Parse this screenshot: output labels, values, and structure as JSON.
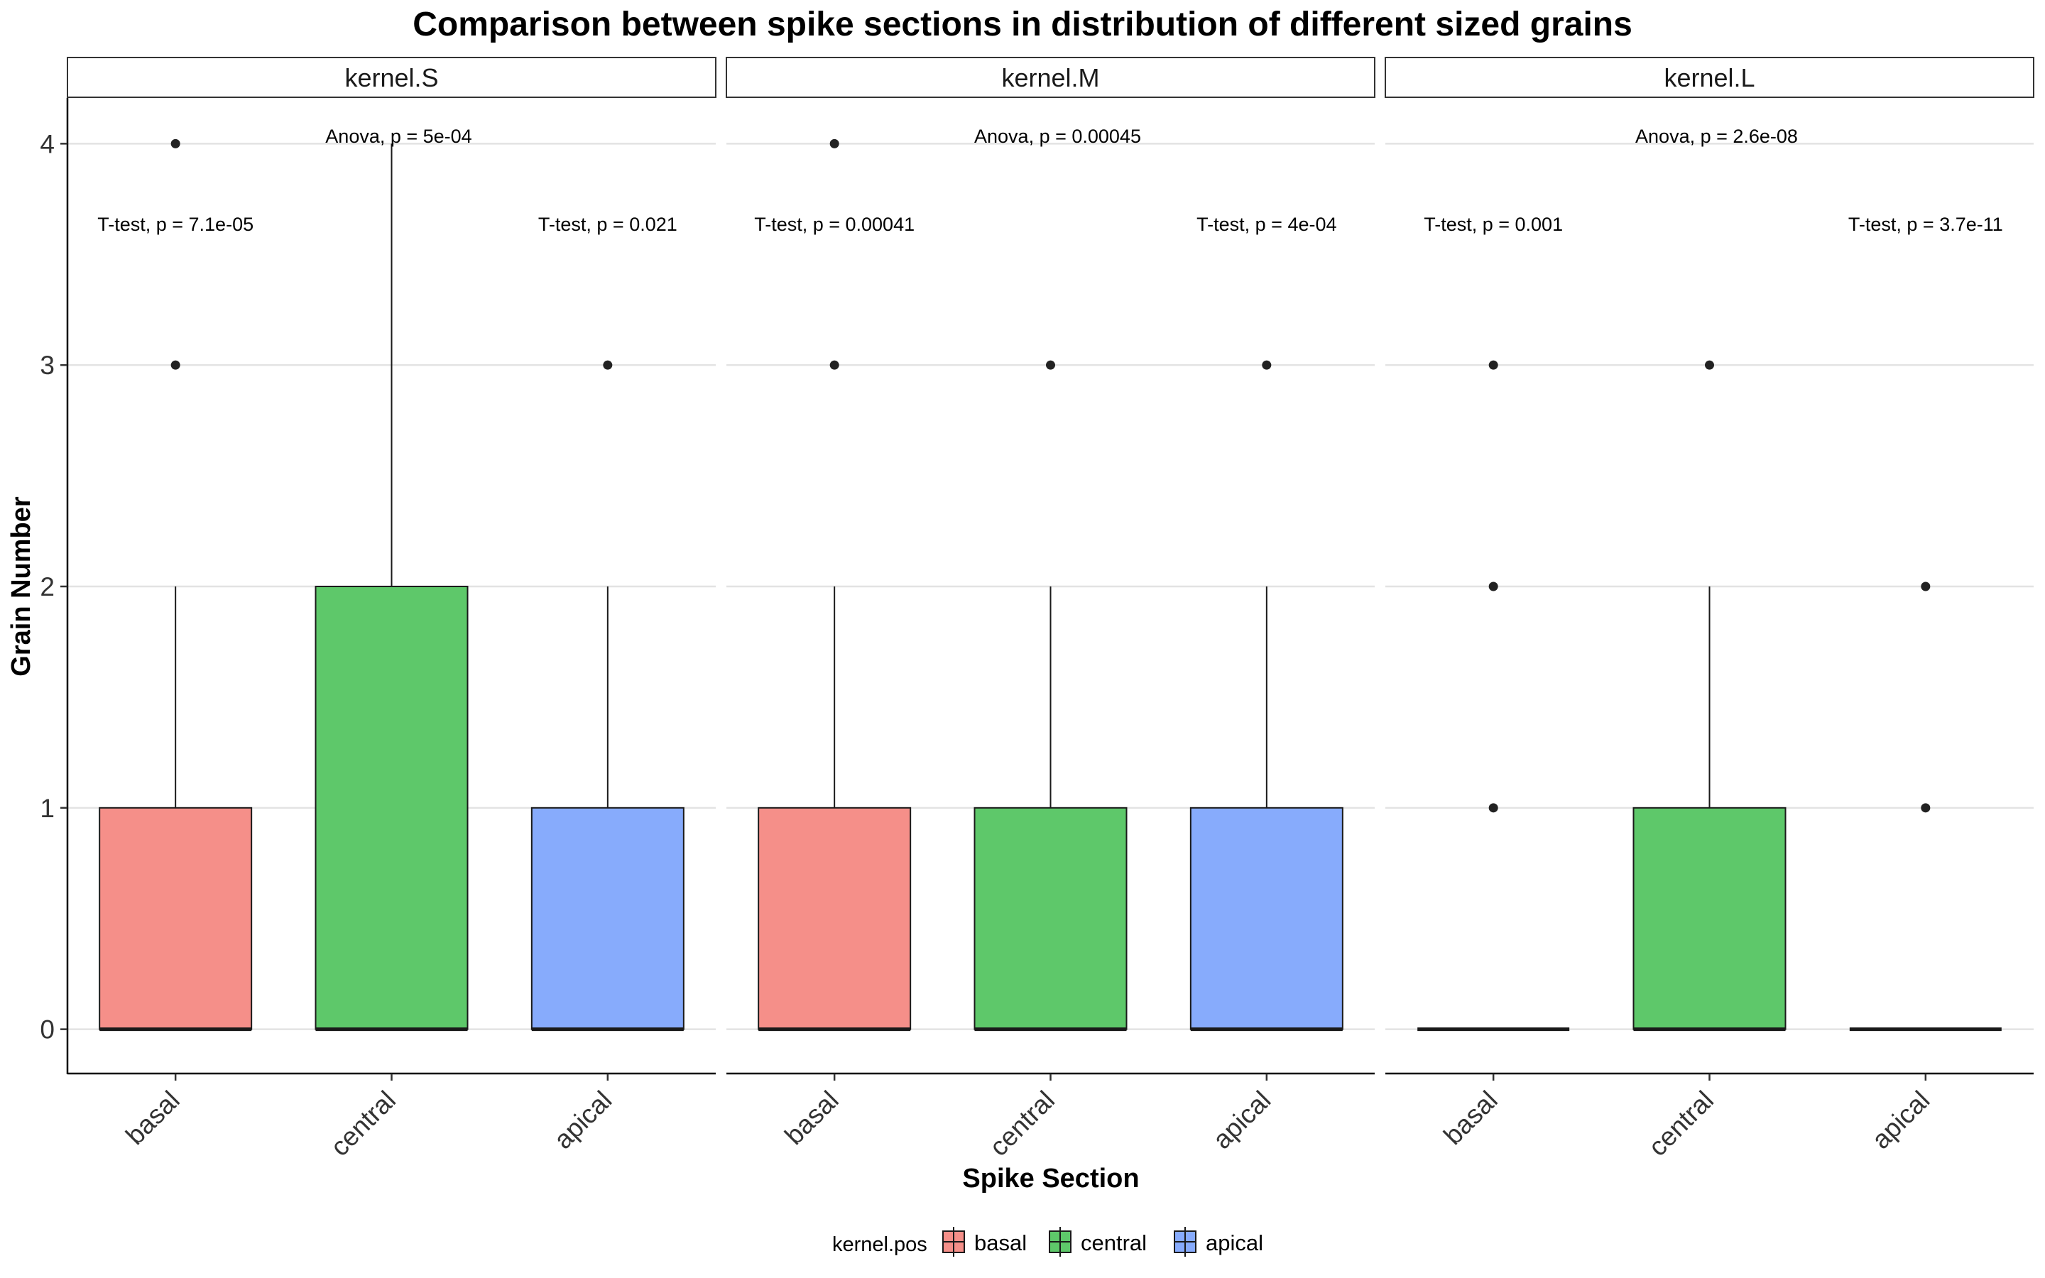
{
  "chart_data": {
    "type": "boxplot",
    "title": "Comparison between spike sections in distribution of different sized grains",
    "xlabel": "Spike Section",
    "ylabel": "Grain Number",
    "ylim": [
      -0.2,
      4.2
    ],
    "yticks": [
      0,
      1,
      2,
      3,
      4
    ],
    "categories": [
      "basal",
      "central",
      "apical"
    ],
    "grid": "horizontal major",
    "legend": {
      "title": "kernel.pos",
      "position": "bottom",
      "entries": [
        {
          "label": "basal",
          "color": "#F8766D"
        },
        {
          "label": "central",
          "color": "#00BA38"
        },
        {
          "label": "apical",
          "color": "#619CFF"
        }
      ]
    },
    "facets": [
      {
        "name": "kernel.S",
        "anova": "Anova, p = 5e-04",
        "ttest_left": "T-test, p = 7.1e-05",
        "ttest_right": "T-test, p = 0.021",
        "boxes": [
          {
            "category": "basal",
            "min": 0,
            "q1": 0,
            "median": 0,
            "q3": 1,
            "max": 2,
            "outliers": [
              3,
              4
            ]
          },
          {
            "category": "central",
            "min": 0,
            "q1": 0,
            "median": 0,
            "q3": 2,
            "max": 4,
            "outliers": []
          },
          {
            "category": "apical",
            "min": 0,
            "q1": 0,
            "median": 0,
            "q3": 1,
            "max": 2,
            "outliers": [
              3
            ]
          }
        ]
      },
      {
        "name": "kernel.M",
        "anova": "Anova, p = 0.00045",
        "ttest_left": "T-test, p = 0.00041",
        "ttest_right": "T-test, p = 4e-04",
        "boxes": [
          {
            "category": "basal",
            "min": 0,
            "q1": 0,
            "median": 0,
            "q3": 1,
            "max": 2,
            "outliers": [
              3,
              4
            ]
          },
          {
            "category": "central",
            "min": 0,
            "q1": 0,
            "median": 0,
            "q3": 1,
            "max": 2,
            "outliers": [
              3
            ]
          },
          {
            "category": "apical",
            "min": 0,
            "q1": 0,
            "median": 0,
            "q3": 1,
            "max": 2,
            "outliers": [
              3
            ]
          }
        ]
      },
      {
        "name": "kernel.L",
        "anova": "Anova, p = 2.6e-08",
        "ttest_left": "T-test, p = 0.001",
        "ttest_right": "T-test, p = 3.7e-11",
        "boxes": [
          {
            "category": "basal",
            "min": 0,
            "q1": 0,
            "median": 0,
            "q3": 0,
            "max": 0,
            "outliers": [
              1,
              2,
              3
            ]
          },
          {
            "category": "central",
            "min": 0,
            "q1": 0,
            "median": 0,
            "q3": 1,
            "max": 2,
            "outliers": [
              3
            ]
          },
          {
            "category": "apical",
            "min": 0,
            "q1": 0,
            "median": 0,
            "q3": 0,
            "max": 0,
            "outliers": [
              1,
              2
            ]
          }
        ]
      }
    ]
  }
}
